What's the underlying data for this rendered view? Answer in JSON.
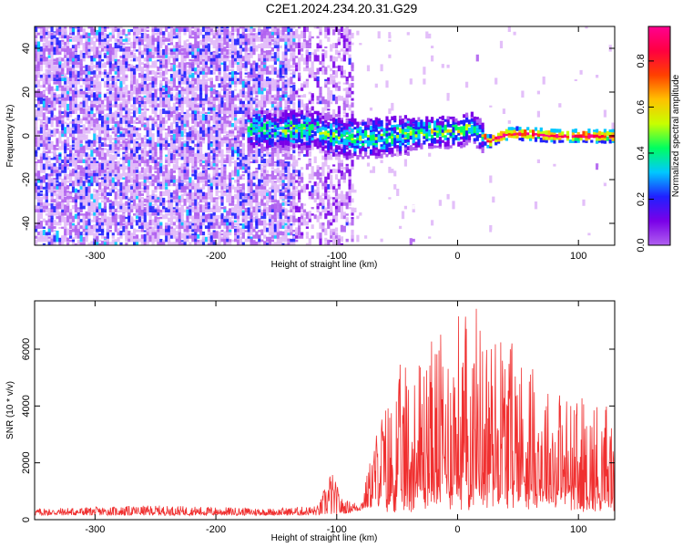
{
  "title": "C2E1.2024.234.20.31.G29",
  "chart_data": [
    {
      "type": "heatmap",
      "xlabel": "Height of straight line (km)",
      "ylabel": "Frequency (Hz)",
      "xlim": [
        -350,
        130
      ],
      "ylim": [
        -50,
        50
      ],
      "xticks": [
        -300,
        -200,
        -100,
        0,
        100
      ],
      "yticks": [
        -40,
        -20,
        0,
        20,
        40
      ],
      "colorbar": {
        "label": "Normalized spectral amplitude",
        "range": [
          0,
          0.95
        ],
        "ticks": [
          "0.0",
          "0.2",
          "0.4",
          "0.6",
          "0.8"
        ],
        "colors": [
          "#ffffff",
          "#e0b8f8",
          "#b060f0",
          "#7a00e8",
          "#2020ff",
          "#00c8ff",
          "#00ff60",
          "#c8ff00",
          "#ffc000",
          "#ff4000",
          "#ff0040",
          "#ff0090"
        ]
      },
      "signal_line": [
        {
          "x": -170,
          "y": 3
        },
        {
          "x": -140,
          "y": 3
        },
        {
          "x": -120,
          "y": 3
        },
        {
          "x": -100,
          "y": 0
        },
        {
          "x": -80,
          "y": -1
        },
        {
          "x": -60,
          "y": 0
        },
        {
          "x": -40,
          "y": 1
        },
        {
          "x": -20,
          "y": 2
        },
        {
          "x": 0,
          "y": 2
        },
        {
          "x": 10,
          "y": 4
        },
        {
          "x": 20,
          "y": 0
        },
        {
          "x": 25,
          "y": -3
        },
        {
          "x": 30,
          "y": -1
        },
        {
          "x": 40,
          "y": 1
        },
        {
          "x": 60,
          "y": 1
        },
        {
          "x": 80,
          "y": 0
        },
        {
          "x": 100,
          "y": 0
        },
        {
          "x": 130,
          "y": 0
        }
      ]
    },
    {
      "type": "line",
      "xlabel": "Height of straight line (km)",
      "ylabel": "SNR (10 * v/v)",
      "xlim": [
        -350,
        130
      ],
      "ylim": [
        0,
        7700
      ],
      "xticks": [
        -300,
        -200,
        -100,
        0,
        100
      ],
      "yticks": [
        0,
        2000,
        4000,
        6000
      ],
      "color": "#f03030",
      "envelope": [
        {
          "x": -350,
          "y": 400
        },
        {
          "x": -250,
          "y": 500
        },
        {
          "x": -150,
          "y": 400
        },
        {
          "x": -115,
          "y": 500
        },
        {
          "x": -105,
          "y": 1800
        },
        {
          "x": -95,
          "y": 700
        },
        {
          "x": -80,
          "y": 600
        },
        {
          "x": -65,
          "y": 3600
        },
        {
          "x": -52,
          "y": 5200
        },
        {
          "x": -40,
          "y": 5800
        },
        {
          "x": -20,
          "y": 6800
        },
        {
          "x": -5,
          "y": 7500
        },
        {
          "x": 20,
          "y": 7600
        },
        {
          "x": 40,
          "y": 7400
        },
        {
          "x": 60,
          "y": 6000
        },
        {
          "x": 90,
          "y": 4600
        },
        {
          "x": 110,
          "y": 4400
        },
        {
          "x": 130,
          "y": 4600
        }
      ],
      "baseline": [
        {
          "x": -350,
          "y": 150
        },
        {
          "x": -100,
          "y": 150
        },
        {
          "x": -60,
          "y": 500
        },
        {
          "x": -30,
          "y": 800
        },
        {
          "x": 0,
          "y": 1000
        },
        {
          "x": 30,
          "y": 1200
        },
        {
          "x": 60,
          "y": 900
        },
        {
          "x": 100,
          "y": 600
        },
        {
          "x": 130,
          "y": 500
        }
      ]
    }
  ]
}
